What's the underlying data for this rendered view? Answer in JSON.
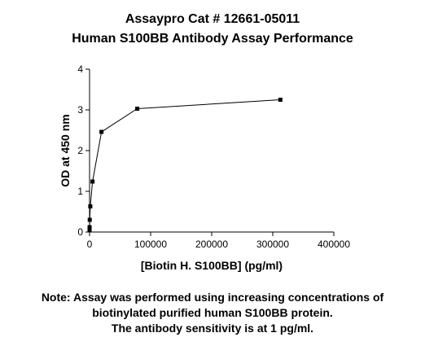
{
  "chart_data": {
    "type": "line",
    "title": [
      "Assaypro Cat # 12661-05011",
      "Human S100BB Antibody Assay Performance"
    ],
    "xlabel": "[Biotin H. S100BB] (pg/ml)",
    "ylabel": "OD at 450 nm",
    "note": [
      "Note: Assay was performed using increasing concentrations of",
      "biotinylated purified human S100BB protein.",
      "The antibody sensitivity is at 1 pg/ml."
    ],
    "x": [
      19,
      76,
      305,
      1221,
      4883,
      19531,
      78125,
      312500
    ],
    "series": [
      {
        "color": "#000000",
        "values": [
          0.06,
          0.12,
          0.3,
          0.63,
          1.24,
          2.46,
          3.03,
          3.25
        ]
      }
    ],
    "xlim": [
      0,
      400000
    ],
    "xticks": [
      0,
      100000,
      200000,
      300000,
      400000
    ],
    "ylim": [
      0,
      4
    ],
    "yticks": [
      0,
      1,
      2,
      3,
      4
    ]
  }
}
